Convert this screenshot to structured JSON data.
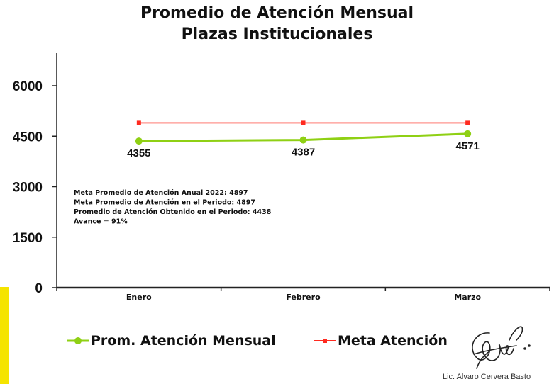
{
  "title_line1": "Promedio de Atención Mensual",
  "title_line2": "Plazas Institucionales",
  "chart_data": {
    "type": "line",
    "categories": [
      "Enero",
      "Febrero",
      "Marzo"
    ],
    "series": [
      {
        "name": "Prom. Atención Mensual",
        "values": [
          4355,
          4387,
          4571
        ],
        "color": "#8fd014",
        "marker": "circle"
      },
      {
        "name": "Meta Atención",
        "values": [
          4897,
          4897,
          4897
        ],
        "color": "#ff2a1f",
        "marker": "square"
      }
    ],
    "data_labels": [
      "4355",
      "4387",
      "4571"
    ],
    "ylim": [
      0,
      6000
    ],
    "yticks": [
      0,
      1500,
      3000,
      4500,
      6000
    ],
    "grid": false,
    "legend_position": "bottom"
  },
  "annotations": [
    "Meta Promedio de Atención Anual 2022: 4897",
    "Meta Promedio de Atención en el Periodo: 4897",
    "Promedio de Atención Obtenido en el Periodo: 4438",
    "Avance = 91%"
  ],
  "legend": {
    "series1_label": "Prom. Atención Mensual",
    "series2_label": "Meta Atención"
  },
  "signature_name": "Lic. Alvaro Cervera Basto",
  "colors": {
    "accent": "#f5e400",
    "actual_line": "#8fd014",
    "target_line": "#ff2a1f"
  }
}
